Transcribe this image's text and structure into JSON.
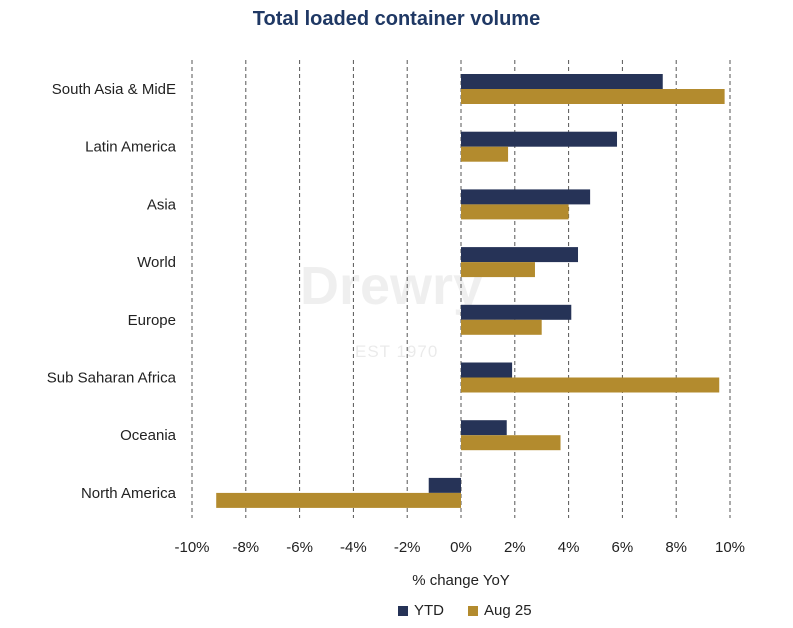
{
  "chart_data": {
    "type": "bar",
    "orientation": "horizontal",
    "title": "Total loaded container volume",
    "xlabel": "% change YoY",
    "ylabel": "",
    "xlim": [
      -10,
      10
    ],
    "xticks": [
      "-10%",
      "-8%",
      "-6%",
      "-4%",
      "-2%",
      "0%",
      "2%",
      "4%",
      "6%",
      "8%",
      "10%"
    ],
    "grid": "vertical dashed",
    "legend_position": "bottom",
    "categories": [
      "South Asia & MidE",
      "Latin America",
      "Asia",
      "World",
      "Europe",
      "Sub Saharan Africa",
      "Oceania",
      "North America"
    ],
    "series": [
      {
        "name": "YTD",
        "color": "#263357",
        "values": [
          7.5,
          5.8,
          4.8,
          4.35,
          4.1,
          1.9,
          1.7,
          -1.2
        ]
      },
      {
        "name": "Aug 25",
        "color": "#b38b2e",
        "values": [
          9.8,
          1.75,
          4.0,
          2.75,
          3.0,
          9.6,
          3.7,
          -9.1
        ]
      }
    ],
    "watermark": "Drewry EST 1970"
  }
}
